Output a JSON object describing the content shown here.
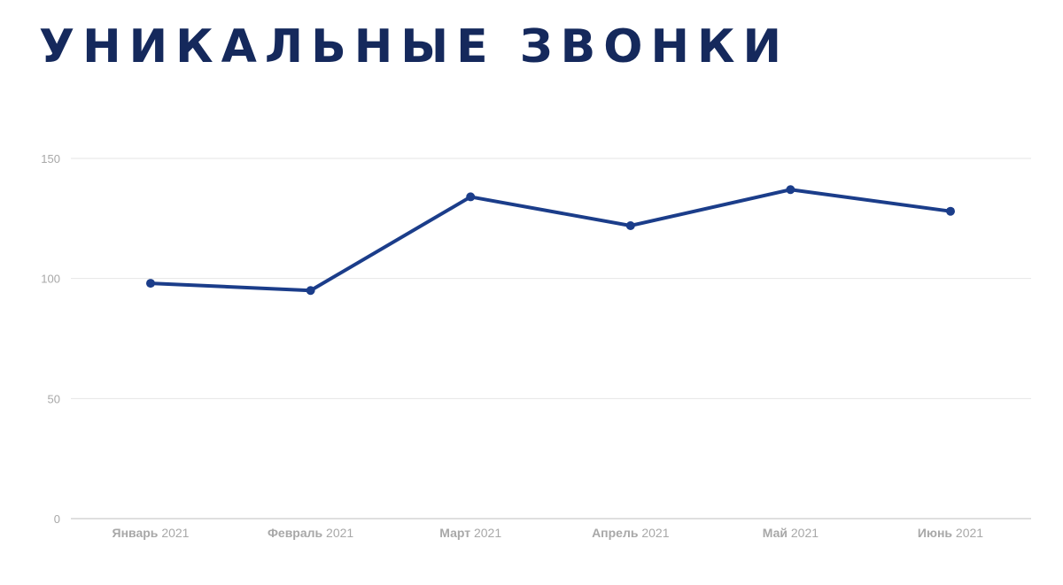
{
  "title": "УНИКАЛЬНЫЕ ЗВОНКИ",
  "chart_data": {
    "type": "line",
    "title": "УНИКАЛЬНЫЕ ЗВОНКИ",
    "xlabel": "",
    "ylabel": "",
    "categories": [
      "Январь 2021",
      "Февраль 2021",
      "Март 2021",
      "Апрель 2021",
      "Май 2021",
      "Июнь 2021"
    ],
    "category_parts": [
      {
        "month": "Январь",
        "year": "2021"
      },
      {
        "month": "Февраль",
        "year": "2021"
      },
      {
        "month": "Март",
        "year": "2021"
      },
      {
        "month": "Апрель",
        "year": "2021"
      },
      {
        "month": "Май",
        "year": "2021"
      },
      {
        "month": "Июнь",
        "year": "2021"
      }
    ],
    "series": [
      {
        "values": [
          98,
          95,
          134,
          122,
          137,
          128
        ]
      }
    ],
    "ylim": [
      0,
      150
    ],
    "yticks": [
      0,
      50,
      100,
      150
    ],
    "grid": true,
    "line_color": "#1b3d8a",
    "grid_color": "#e6e6e6",
    "axis_color": "#cccccc",
    "label_color": "#a8a8a8",
    "markers": true
  },
  "colors": {
    "title": "#15295c",
    "background": "#ffffff"
  }
}
